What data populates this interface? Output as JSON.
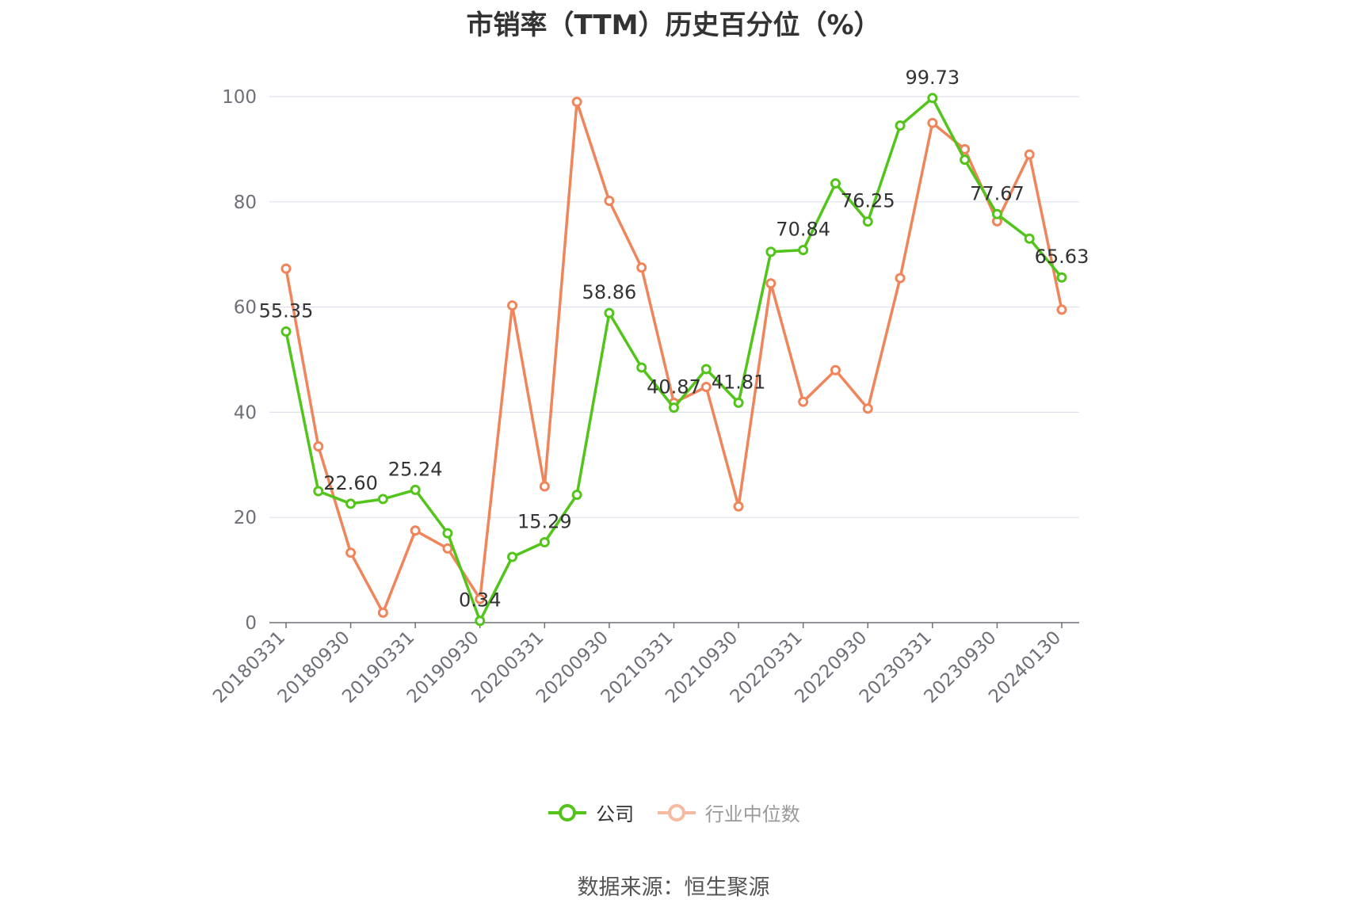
{
  "title": "市销率（TTM）历史百分位（%）",
  "source": "数据来源：恒生聚源",
  "colors": {
    "company": "#52c41a",
    "industry": "#f0845a",
    "grid": "#dde1ee",
    "axis": "#6e7079"
  },
  "chart_data": {
    "type": "line",
    "title": "市销率（TTM）历史百分位（%）",
    "xlabel": "",
    "ylabel": "",
    "ylim": [
      0,
      100
    ],
    "yticks": [
      0,
      20,
      40,
      60,
      80,
      100
    ],
    "grid": true,
    "legend_position": "bottom",
    "x": [
      "20180331",
      "20180630",
      "20180930",
      "20181231",
      "20190331",
      "20190630",
      "20190930",
      "20191231",
      "20200331",
      "20200630",
      "20200930",
      "20201231",
      "20210331",
      "20210630",
      "20210930",
      "20211231",
      "20220331",
      "20220630",
      "20220930",
      "20221231",
      "20230331",
      "20230630",
      "20230930",
      "20231231",
      "20240130"
    ],
    "x_tick_labels": [
      "20180331",
      "20180930",
      "20190331",
      "20190930",
      "20200331",
      "20200930",
      "20210331",
      "20210930",
      "20220331",
      "20220930",
      "20230331",
      "20230930",
      "20240130"
    ],
    "series": [
      {
        "name": "公司",
        "values": [
          55.35,
          25.0,
          22.6,
          23.5,
          25.24,
          17.0,
          0.34,
          12.5,
          15.29,
          24.3,
          58.86,
          48.5,
          40.87,
          48.2,
          41.81,
          70.5,
          70.84,
          83.5,
          76.25,
          94.5,
          99.73,
          88.0,
          77.67,
          73.0,
          65.63
        ],
        "labels": {
          "0": "55.35",
          "2": "22.60",
          "4": "25.24",
          "6": "0.34",
          "8": "15.29",
          "10": "58.86",
          "12": "40.87",
          "14": "41.81",
          "16": "70.84",
          "18": "76.25",
          "20": "99.73",
          "22": "77.67",
          "24": "65.63"
        }
      },
      {
        "name": "行业中位数",
        "values": [
          67.3,
          33.5,
          13.3,
          1.9,
          17.5,
          14.1,
          4.5,
          60.3,
          25.9,
          99.0,
          80.2,
          67.5,
          41.8,
          44.8,
          22.1,
          64.5,
          42.0,
          48.0,
          40.7,
          65.5,
          95.0,
          90.0,
          76.3,
          89.0,
          59.5
        ]
      }
    ]
  }
}
